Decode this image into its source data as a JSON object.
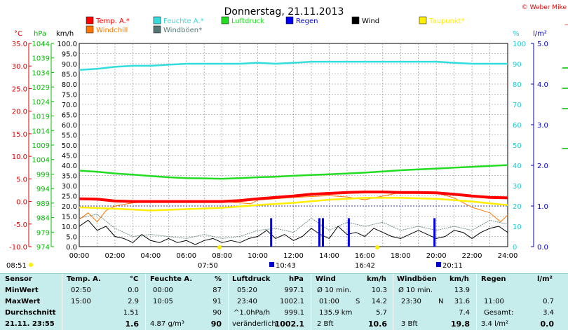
{
  "header": {
    "title": "Donnerstag, 21.11.2013",
    "copyright": "© Weber Mike"
  },
  "legend": [
    {
      "label": "Temp. A.*",
      "color": "#ff0000"
    },
    {
      "label": "Feuchte A.*",
      "color": "#33dddd"
    },
    {
      "label": "Luftdruck",
      "color": "#22dd22"
    },
    {
      "label": "Regen",
      "color": "#0000ee"
    },
    {
      "label": "Wind",
      "color": "#000000"
    },
    {
      "label": "Taupunkt*",
      "color": "#ffee00"
    },
    {
      "label": "Windchill",
      "color": "#ff7700"
    },
    {
      "label": "Windböen*",
      "color": "#557777"
    }
  ],
  "axis_units": {
    "temp": "°C",
    "pressure": "hPa",
    "wind": "km/h",
    "humidity": "%",
    "rain": "l/m²"
  },
  "chart_data": {
    "type": "line",
    "title": "Donnerstag, 21.11.2013",
    "x": [
      "00:00",
      "02:00",
      "04:00",
      "06:00",
      "08:00",
      "10:00",
      "12:00",
      "14:00",
      "16:00",
      "18:00",
      "20:00",
      "22:00",
      "24:00"
    ],
    "axes": {
      "temp": {
        "unit": "°C",
        "range": [
          -10.0,
          35.0
        ],
        "ticks": [
          "35.0",
          "30.0",
          "25.0",
          "20.0",
          "15.0",
          "10.0",
          "5.0",
          "0.0",
          "-5.0",
          "-10.0"
        ]
      },
      "pressure": {
        "unit": "hPa",
        "range": [
          974,
          1044
        ],
        "ticks": [
          "1044",
          "1039",
          "1034",
          "1029",
          "1024",
          "1019",
          "1014",
          "1009",
          "1004",
          "999",
          "994",
          "989",
          "984",
          "979",
          "974"
        ]
      },
      "wind": {
        "unit": "km/h",
        "range": [
          0.0,
          100.0
        ],
        "ticks": [
          "100.0",
          "95.0",
          "90.0",
          "85.0",
          "80.0",
          "75.0",
          "70.0",
          "65.0",
          "60.0",
          "55.0",
          "50.0",
          "45.0",
          "40.0",
          "35.0",
          "30.0",
          "25.0",
          "20.0",
          "15.0",
          "10.0",
          "5.0",
          "0.0"
        ]
      },
      "humidity": {
        "unit": "%",
        "range": [
          0,
          100
        ],
        "ticks": [
          "100",
          "90",
          "80",
          "70",
          "60",
          "50",
          "40",
          "30",
          "20",
          "10",
          "0"
        ]
      },
      "rain": {
        "unit": "l/m²",
        "range": [
          0.0,
          5.0
        ],
        "ticks": [
          "5.0",
          "4.0",
          "3.0",
          "2.0",
          "1.0",
          "0.0"
        ]
      }
    },
    "series": [
      {
        "name": "Temp. A.*",
        "axis": "temp",
        "color": "#ff0000",
        "points": [
          [
            0,
            0.6
          ],
          [
            1,
            0.5
          ],
          [
            2,
            0.1
          ],
          [
            3,
            0.0
          ],
          [
            4,
            0.0
          ],
          [
            5,
            0.0
          ],
          [
            6,
            0.0
          ],
          [
            7,
            0.0
          ],
          [
            8,
            0.0
          ],
          [
            9,
            0.2
          ],
          [
            10,
            0.6
          ],
          [
            11,
            0.9
          ],
          [
            12,
            1.2
          ],
          [
            13,
            1.6
          ],
          [
            14,
            1.8
          ],
          [
            15,
            2.0
          ],
          [
            16,
            2.1
          ],
          [
            17,
            2.1
          ],
          [
            18,
            2.0
          ],
          [
            19,
            2.0
          ],
          [
            20,
            1.9
          ],
          [
            21,
            1.6
          ],
          [
            22,
            1.2
          ],
          [
            23,
            0.9
          ],
          [
            24,
            0.8
          ]
        ]
      },
      {
        "name": "Feuchte A.*",
        "axis": "humidity",
        "color": "#33dddd",
        "points": [
          [
            0,
            87
          ],
          [
            1,
            87.5
          ],
          [
            2,
            88.5
          ],
          [
            3,
            89
          ],
          [
            4,
            89
          ],
          [
            5,
            89.5
          ],
          [
            6,
            90
          ],
          [
            7,
            90
          ],
          [
            8,
            90
          ],
          [
            9,
            90
          ],
          [
            10,
            90.5
          ],
          [
            11,
            90
          ],
          [
            12,
            90.5
          ],
          [
            13,
            91
          ],
          [
            14,
            91
          ],
          [
            15,
            91
          ],
          [
            16,
            91
          ],
          [
            17,
            91
          ],
          [
            18,
            91
          ],
          [
            19,
            91
          ],
          [
            20,
            91
          ],
          [
            21,
            90.5
          ],
          [
            22,
            90
          ],
          [
            23,
            90
          ],
          [
            24,
            90
          ]
        ]
      },
      {
        "name": "Luftdruck",
        "axis": "pressure",
        "color": "#22dd22",
        "points": [
          [
            0,
            1000.2
          ],
          [
            1,
            999.8
          ],
          [
            2,
            999.2
          ],
          [
            3,
            998.8
          ],
          [
            4,
            998.3
          ],
          [
            5,
            997.9
          ],
          [
            6,
            997.6
          ],
          [
            7,
            997.5
          ],
          [
            8,
            997.4
          ],
          [
            9,
            997.6
          ],
          [
            10,
            997.9
          ],
          [
            11,
            998.1
          ],
          [
            12,
            998.4
          ],
          [
            13,
            998.7
          ],
          [
            14,
            998.9
          ],
          [
            15,
            999.2
          ],
          [
            16,
            999.5
          ],
          [
            17,
            999.9
          ],
          [
            18,
            1000.3
          ],
          [
            19,
            1000.6
          ],
          [
            20,
            1000.9
          ],
          [
            21,
            1001.2
          ],
          [
            22,
            1001.5
          ],
          [
            23,
            1001.8
          ],
          [
            24,
            1002.1
          ]
        ]
      },
      {
        "name": "Taupunkt*",
        "axis": "temp",
        "color": "#ffee00",
        "points": [
          [
            0,
            -1.3
          ],
          [
            2,
            -1.6
          ],
          [
            4,
            -2.0
          ],
          [
            6,
            -1.7
          ],
          [
            8,
            -1.4
          ],
          [
            10,
            -0.8
          ],
          [
            12,
            -0.3
          ],
          [
            14,
            0.4
          ],
          [
            16,
            0.8
          ],
          [
            18,
            0.8
          ],
          [
            20,
            0.6
          ],
          [
            22,
            0.0
          ],
          [
            24,
            -0.8
          ]
        ]
      },
      {
        "name": "Windchill",
        "axis": "temp",
        "color": "#ff7700",
        "points": [
          [
            0,
            -4.0
          ],
          [
            0.5,
            -2.5
          ],
          [
            1,
            -4.5
          ],
          [
            1.5,
            -2.0
          ],
          [
            2,
            -1.0
          ],
          [
            3,
            -0.3
          ],
          [
            4,
            0.0
          ],
          [
            6,
            0.0
          ],
          [
            8,
            0.0
          ],
          [
            9.6,
            -0.5
          ],
          [
            10,
            0.3
          ],
          [
            12,
            0.9
          ],
          [
            14,
            1.3
          ],
          [
            15,
            1.0
          ],
          [
            16,
            0.4
          ],
          [
            18,
            2.0
          ],
          [
            20,
            1.9
          ],
          [
            21,
            0.8
          ],
          [
            22,
            -1.3
          ],
          [
            23,
            -2.5
          ],
          [
            23.6,
            -4.5
          ],
          [
            24,
            -3.0
          ]
        ]
      },
      {
        "name": "Wind",
        "axis": "wind",
        "color": "#000000",
        "points": [
          [
            0,
            10
          ],
          [
            0.5,
            13
          ],
          [
            1,
            8
          ],
          [
            1.5,
            10
          ],
          [
            2,
            5
          ],
          [
            2.5,
            4
          ],
          [
            3,
            2
          ],
          [
            3.5,
            6
          ],
          [
            4,
            3
          ],
          [
            4.5,
            2
          ],
          [
            5,
            4
          ],
          [
            5.5,
            2
          ],
          [
            6,
            3
          ],
          [
            6.5,
            1
          ],
          [
            7,
            3
          ],
          [
            7.5,
            4
          ],
          [
            8,
            2
          ],
          [
            8.5,
            3
          ],
          [
            9,
            2
          ],
          [
            9.5,
            4
          ],
          [
            10,
            5
          ],
          [
            10.5,
            8
          ],
          [
            11,
            4
          ],
          [
            11.5,
            6
          ],
          [
            12,
            3
          ],
          [
            12.5,
            5
          ],
          [
            13,
            9
          ],
          [
            13.5,
            6
          ],
          [
            14,
            4
          ],
          [
            14.5,
            10
          ],
          [
            15,
            6
          ],
          [
            15.5,
            7
          ],
          [
            16,
            5
          ],
          [
            16.5,
            9
          ],
          [
            17,
            7
          ],
          [
            17.5,
            5
          ],
          [
            18,
            4
          ],
          [
            18.5,
            6
          ],
          [
            19,
            8
          ],
          [
            19.5,
            6
          ],
          [
            20,
            4
          ],
          [
            20.5,
            5
          ],
          [
            21,
            8
          ],
          [
            21.5,
            7
          ],
          [
            22,
            4
          ],
          [
            22.5,
            7
          ],
          [
            23,
            9
          ],
          [
            23.5,
            10
          ],
          [
            24,
            7
          ]
        ]
      },
      {
        "name": "Windböen*",
        "axis": "wind",
        "color": "#557777",
        "points": [
          [
            0,
            14
          ],
          [
            1,
            16
          ],
          [
            2,
            9
          ],
          [
            3,
            5
          ],
          [
            4,
            6
          ],
          [
            5,
            5
          ],
          [
            6,
            4
          ],
          [
            7,
            6
          ],
          [
            8,
            4
          ],
          [
            9,
            5
          ],
          [
            10,
            8
          ],
          [
            11,
            9
          ],
          [
            12,
            7
          ],
          [
            13,
            14
          ],
          [
            14,
            8
          ],
          [
            15,
            12
          ],
          [
            16,
            10
          ],
          [
            17,
            12
          ],
          [
            18,
            8
          ],
          [
            19,
            10
          ],
          [
            20,
            8
          ],
          [
            21,
            10
          ],
          [
            22,
            8
          ],
          [
            23,
            13
          ],
          [
            24,
            11
          ]
        ]
      },
      {
        "name": "Regen",
        "axis": "rain",
        "color": "#0000ee",
        "type": "bar",
        "points": [
          [
            10.75,
            0.7
          ],
          [
            13.45,
            0.7
          ],
          [
            13.65,
            0.7
          ],
          [
            15.1,
            0.7
          ],
          [
            19.9,
            0.7
          ]
        ]
      }
    ]
  },
  "event_labels": {
    "left": "08:51",
    "b1": "07:50",
    "b2": "10:43",
    "b3": "16:42",
    "b4": "20:11"
  },
  "stats": {
    "c1": {
      "title": "Sensor",
      "r1": "MinWert",
      "r2": "MaxWert",
      "r3": "Durchschnitt",
      "r4": "21.11. 23:55"
    },
    "c2": {
      "title": "Temp. A.",
      "unit": "°C",
      "r1t": "02:50",
      "r1v": "0.0",
      "r2t": "15:00",
      "r2v": "2.9",
      "r3v": "1.51",
      "r4v": "1.6"
    },
    "c3": {
      "title": "Feuchte A.",
      "unit": "%",
      "r1t": "00:00",
      "r1v": "87",
      "r2t": "10:05",
      "r2v": "91",
      "r3v": "90",
      "r4t": "4.87 g/m³",
      "r4v": "90"
    },
    "c4": {
      "title": "Luftdruck",
      "unit": "hPa",
      "r1t": "05:20",
      "r1v": "997.1",
      "r2t": "23:40",
      "r2v": "1002.1",
      "r3t": "^1.0hPa/h",
      "r3v": "999.1",
      "r4t": "veränderlich",
      "r4v": "1002.1"
    },
    "c5": {
      "title": "Wind",
      "unit": "km/h",
      "r1t": "Ø 10 min.",
      "r1v": "10.3",
      "r2t": "01:00",
      "r2m": "S",
      "r2v": "14.2",
      "r3t": "135.9 km",
      "r3v": "5.7",
      "r4t": "2 Bft",
      "r4v": "10.6"
    },
    "c6": {
      "title": "Windböen",
      "unit": "km/h",
      "r1t": "Ø 10 min.",
      "r1v": "13.9",
      "r2t": "23:30",
      "r2m": "N",
      "r2v": "31.6",
      "r3v": "7.4",
      "r4t": "3 Bft",
      "r4v": "19.8"
    },
    "c7": {
      "title": "Regen",
      "unit": "l/m²",
      "r2t": "11:00",
      "r2v": "0.7",
      "r3t": "Gesamt:",
      "r3v": "3.4",
      "r4t": "3.4 l/m²",
      "r4v": "0.0"
    }
  }
}
